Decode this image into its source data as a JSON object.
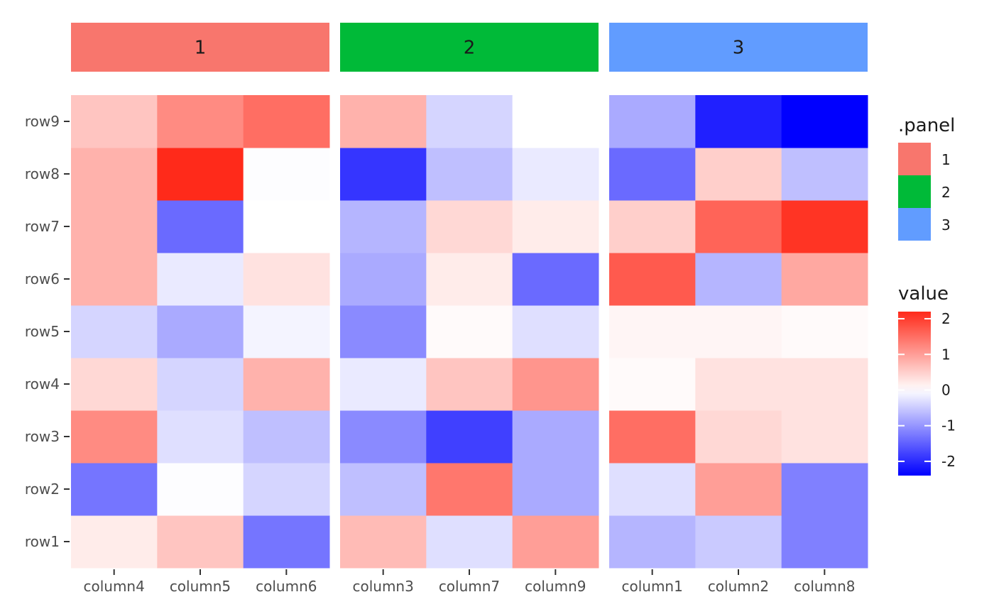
{
  "chart_data": {
    "type": "heatmap",
    "rows": [
      "row1",
      "row2",
      "row3",
      "row4",
      "row5",
      "row6",
      "row7",
      "row8",
      "row9"
    ],
    "panels": [
      {
        "label": "1",
        "color": "#F8766D",
        "columns": [
          "column4",
          "column5",
          "column6"
        ],
        "values": {
          "row9": [
            0.6,
            1.2,
            1.5
          ],
          "row8": [
            0.8,
            2.3,
            -0.02
          ],
          "row7": [
            0.8,
            -1.4,
            0.0
          ],
          "row6": [
            0.8,
            -0.2,
            0.3
          ],
          "row5": [
            -0.4,
            -0.8,
            -0.1
          ],
          "row4": [
            0.4,
            -0.4,
            0.8
          ],
          "row3": [
            1.2,
            -0.3,
            -0.6
          ],
          "row2": [
            -1.3,
            -0.02,
            -0.4
          ],
          "row1": [
            0.2,
            0.6,
            -1.3
          ]
        }
      },
      {
        "label": "2",
        "color": "#00BA38",
        "columns": [
          "column3",
          "column7",
          "column9"
        ],
        "values": {
          "row9": [
            0.8,
            -0.4,
            0.0
          ],
          "row8": [
            -1.9,
            -0.6,
            -0.2
          ],
          "row7": [
            -0.7,
            0.4,
            0.2
          ],
          "row6": [
            -0.8,
            0.2,
            -1.4
          ],
          "row5": [
            -1.1,
            0.05,
            -0.3
          ],
          "row4": [
            -0.2,
            0.6,
            1.1
          ],
          "row3": [
            -1.1,
            -1.8,
            -0.8
          ],
          "row2": [
            -0.6,
            1.4,
            -0.8
          ],
          "row1": [
            0.7,
            -0.3,
            1.0
          ]
        }
      },
      {
        "label": "3",
        "color": "#619CFF",
        "columns": [
          "column1",
          "column2",
          "column8"
        ],
        "values": {
          "row9": [
            -0.8,
            -2.1,
            -2.4
          ],
          "row8": [
            -1.4,
            0.5,
            -0.6
          ],
          "row7": [
            0.5,
            1.6,
            2.1
          ],
          "row6": [
            1.7,
            -0.7,
            0.9
          ],
          "row5": [
            0.1,
            0.1,
            0.05
          ],
          "row4": [
            0.05,
            0.3,
            0.3
          ],
          "row3": [
            1.5,
            0.4,
            0.3
          ],
          "row2": [
            -0.3,
            1.0,
            -1.2
          ],
          "row1": [
            -0.7,
            -0.5,
            -1.2
          ]
        }
      }
    ],
    "fill_scale": {
      "low_color": "#0000FF",
      "mid_color": "#FFFFFF",
      "high_color": "#FF2A1A",
      "limits": [
        -2.4,
        2.2
      ],
      "breaks": [
        2,
        1,
        0,
        -1,
        -2
      ]
    },
    "legends": {
      "panel_title": ".panel",
      "value_title": "value"
    },
    "legend_placement": "right",
    "grid": false
  }
}
